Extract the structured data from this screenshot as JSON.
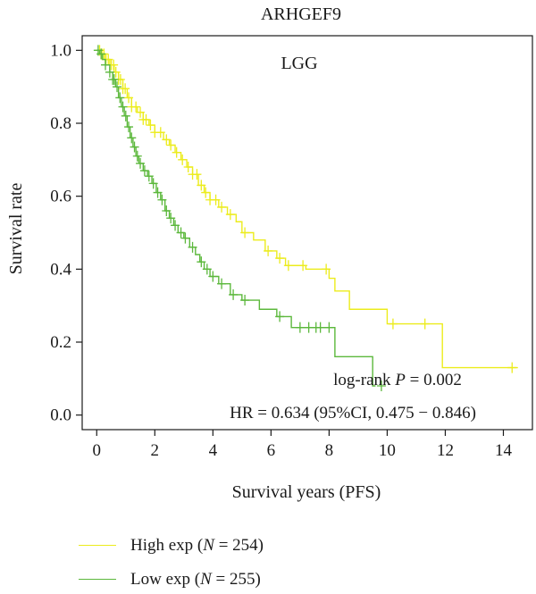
{
  "chart_data": {
    "type": "line",
    "subtype": "kaplan-meier",
    "title": "ARHGEF9",
    "panel_label": "LGG",
    "xlabel": "Survival years (PFS)",
    "ylabel": "Survival rate",
    "xlim": [
      -0.5,
      15
    ],
    "ylim": [
      -0.04,
      1.04
    ],
    "x_ticks": [
      0,
      2,
      4,
      6,
      8,
      10,
      12,
      14
    ],
    "y_ticks": [
      0.0,
      0.2,
      0.4,
      0.6,
      0.8,
      1.0
    ],
    "grid": false,
    "legend_position": "bottom",
    "annotations": {
      "pvalue": {
        "prefix": "log-rank ",
        "symbol": "P",
        "suffix": " = 0.002"
      },
      "hr": "HR = 0.634 (95%CI, 0.475 − 0.846)"
    },
    "series": [
      {
        "key": "high",
        "legend_prefix": "High exp (",
        "legend_symbol": "N",
        "legend_suffix": " = 254)",
        "color": "#ecec1c",
        "steps": [
          [
            0,
            1.0
          ],
          [
            0.15,
            0.99
          ],
          [
            0.3,
            0.975
          ],
          [
            0.45,
            0.96
          ],
          [
            0.6,
            0.94
          ],
          [
            0.75,
            0.92
          ],
          [
            0.9,
            0.895
          ],
          [
            1.05,
            0.87
          ],
          [
            1.2,
            0.845
          ],
          [
            1.4,
            0.83
          ],
          [
            1.6,
            0.81
          ],
          [
            1.8,
            0.795
          ],
          [
            2.0,
            0.775
          ],
          [
            2.3,
            0.755
          ],
          [
            2.5,
            0.74
          ],
          [
            2.7,
            0.72
          ],
          [
            2.9,
            0.7
          ],
          [
            3.1,
            0.68
          ],
          [
            3.3,
            0.66
          ],
          [
            3.5,
            0.63
          ],
          [
            3.7,
            0.61
          ],
          [
            3.9,
            0.59
          ],
          [
            4.2,
            0.57
          ],
          [
            4.5,
            0.55
          ],
          [
            4.8,
            0.53
          ],
          [
            5.0,
            0.5
          ],
          [
            5.4,
            0.48
          ],
          [
            5.8,
            0.45
          ],
          [
            6.2,
            0.43
          ],
          [
            6.5,
            0.41
          ],
          [
            7.2,
            0.4
          ],
          [
            8.0,
            0.375
          ],
          [
            8.2,
            0.34
          ],
          [
            8.7,
            0.29
          ],
          [
            10.0,
            0.25
          ],
          [
            11.9,
            0.13
          ],
          [
            14.5,
            0.13
          ]
        ],
        "censors": [
          0.1,
          0.18,
          0.25,
          0.32,
          0.4,
          0.5,
          0.58,
          0.66,
          0.75,
          0.82,
          0.9,
          0.98,
          1.1,
          1.2,
          1.35,
          1.5,
          1.6,
          1.7,
          1.85,
          2.0,
          2.2,
          2.4,
          2.55,
          2.75,
          2.95,
          3.15,
          3.3,
          3.45,
          3.6,
          3.75,
          3.9,
          4.1,
          4.3,
          4.6,
          5.1,
          5.9,
          6.3,
          6.6,
          7.1,
          7.9,
          10.2,
          11.3,
          14.3
        ]
      },
      {
        "key": "low",
        "legend_prefix": "Low exp (",
        "legend_symbol": "N",
        "legend_suffix": " = 255)",
        "color": "#5cb83c",
        "steps": [
          [
            0,
            1.0
          ],
          [
            0.1,
            0.99
          ],
          [
            0.2,
            0.975
          ],
          [
            0.3,
            0.96
          ],
          [
            0.45,
            0.94
          ],
          [
            0.55,
            0.92
          ],
          [
            0.65,
            0.9
          ],
          [
            0.75,
            0.87
          ],
          [
            0.85,
            0.845
          ],
          [
            0.95,
            0.82
          ],
          [
            1.05,
            0.79
          ],
          [
            1.15,
            0.76
          ],
          [
            1.25,
            0.735
          ],
          [
            1.35,
            0.71
          ],
          [
            1.45,
            0.69
          ],
          [
            1.6,
            0.67
          ],
          [
            1.75,
            0.655
          ],
          [
            1.9,
            0.635
          ],
          [
            2.05,
            0.61
          ],
          [
            2.2,
            0.59
          ],
          [
            2.35,
            0.56
          ],
          [
            2.5,
            0.54
          ],
          [
            2.65,
            0.52
          ],
          [
            2.8,
            0.5
          ],
          [
            3.0,
            0.485
          ],
          [
            3.2,
            0.46
          ],
          [
            3.4,
            0.44
          ],
          [
            3.55,
            0.42
          ],
          [
            3.7,
            0.4
          ],
          [
            3.9,
            0.38
          ],
          [
            4.2,
            0.36
          ],
          [
            4.6,
            0.33
          ],
          [
            5.0,
            0.315
          ],
          [
            5.6,
            0.29
          ],
          [
            6.2,
            0.27
          ],
          [
            6.7,
            0.24
          ],
          [
            8.2,
            0.16
          ],
          [
            9.5,
            0.08
          ],
          [
            9.6,
            0.08
          ]
        ],
        "censors": [
          0.05,
          0.15,
          0.3,
          0.45,
          0.55,
          0.6,
          0.7,
          0.8,
          0.9,
          1.0,
          1.1,
          1.2,
          1.3,
          1.4,
          1.5,
          1.65,
          1.8,
          1.95,
          2.1,
          2.25,
          2.4,
          2.55,
          2.7,
          2.9,
          3.05,
          3.3,
          3.6,
          3.8,
          4.0,
          4.3,
          4.7,
          5.1,
          6.3,
          7.0,
          7.3,
          7.55,
          7.7,
          8.0,
          9.8
        ]
      }
    ]
  }
}
